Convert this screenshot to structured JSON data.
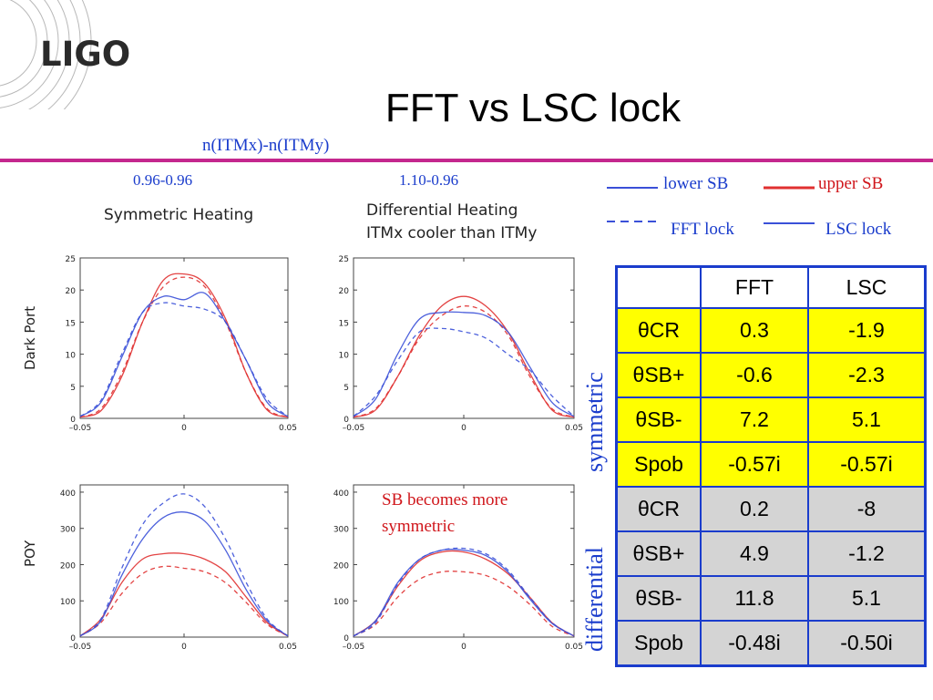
{
  "logo": {
    "text": "LIGO"
  },
  "title": "FFT vs LSC lock",
  "subtitle": "n(ITMx)-n(ITMy)",
  "case_labels": [
    "0.96-0.96",
    "1.10-0.96"
  ],
  "panel_titles": {
    "left": "Symmetric Heating",
    "right_line1": "Differential Heating",
    "right_line2": "ITMx cooler than ITMy"
  },
  "row_labels": [
    "Dark Port",
    "POY"
  ],
  "legend": {
    "lower_sb": "lower SB",
    "upper_sb": "upper SB",
    "fft_lock": "FFT lock",
    "lsc_lock": "LSC lock"
  },
  "annotation": {
    "line1": "SB becomes more",
    "line2": "symmetric"
  },
  "group_labels": {
    "symmetric": "symmetric",
    "differential": "differential"
  },
  "colors": {
    "lower_sb": "#3a50d8",
    "upper_sb": "#e03030",
    "accent": "#1a3ccc",
    "rule": "#c4278e",
    "symmetric_fill": "#ffff00",
    "differential_fill": "#d4d4d4"
  },
  "table": {
    "headers": [
      "",
      "FFT",
      "LSC"
    ],
    "symmetric": [
      [
        "θCR",
        "0.3",
        "-1.9"
      ],
      [
        "θSB+",
        "-0.6",
        "-2.3"
      ],
      [
        "θSB-",
        "7.2",
        "5.1"
      ],
      [
        "Spob",
        "-0.57i",
        "-0.57i"
      ]
    ],
    "differential": [
      [
        "θCR",
        "0.2",
        "-8"
      ],
      [
        "θSB+",
        "4.9",
        "-1.2"
      ],
      [
        "θSB-",
        "11.8",
        "5.1"
      ],
      [
        "Spob",
        "-0.48i",
        "-0.50i"
      ]
    ]
  },
  "chart_data": [
    {
      "type": "line",
      "panel": "dark-port-symmetric",
      "xlim": [
        -0.05,
        0.05
      ],
      "ylim": [
        0,
        25
      ],
      "xticks": [
        "-0.05",
        "0",
        "0.05"
      ],
      "yticks": [
        "0",
        "5",
        "10",
        "15",
        "20",
        "25"
      ],
      "x": [
        -0.05,
        -0.04,
        -0.03,
        -0.02,
        -0.01,
        0,
        0.01,
        0.02,
        0.03,
        0.04,
        0.05
      ],
      "series": [
        {
          "name": "upper SB",
          "lock": "FFT lock",
          "values": [
            0.2,
            1.5,
            7,
            15,
            20.5,
            22,
            20.5,
            15,
            7,
            1.5,
            0.2
          ]
        },
        {
          "name": "upper SB",
          "lock": "LSC lock",
          "values": [
            0.2,
            1.2,
            6.5,
            15,
            21.5,
            22.5,
            21,
            15.5,
            7,
            1.3,
            0.2
          ]
        },
        {
          "name": "lower SB",
          "lock": "FFT lock",
          "values": [
            0.3,
            2.8,
            10,
            16.5,
            18,
            17.5,
            17,
            15,
            9,
            3,
            0.3
          ]
        },
        {
          "name": "lower SB",
          "lock": "LSC lock",
          "values": [
            0.3,
            2.5,
            9.5,
            16.5,
            19,
            18.5,
            19.5,
            15,
            9,
            2.5,
            0.3
          ]
        }
      ]
    },
    {
      "type": "line",
      "panel": "dark-port-differential",
      "xlim": [
        -0.05,
        0.05
      ],
      "ylim": [
        0,
        25
      ],
      "xticks": [
        "-0.05",
        "0",
        "0.05"
      ],
      "yticks": [
        "0",
        "5",
        "10",
        "15",
        "20",
        "25"
      ],
      "x": [
        -0.05,
        -0.04,
        -0.03,
        -0.02,
        -0.01,
        0,
        0.01,
        0.02,
        0.03,
        0.04,
        0.05
      ],
      "series": [
        {
          "name": "upper SB",
          "lock": "FFT lock",
          "values": [
            0.2,
            1.5,
            6.5,
            12.5,
            16,
            17.5,
            16.5,
            13,
            6.5,
            1.5,
            0.2
          ]
        },
        {
          "name": "upper SB",
          "lock": "LSC lock",
          "values": [
            0.2,
            1.3,
            6.5,
            13,
            17.5,
            19,
            17.5,
            13.5,
            7,
            1.3,
            0.2
          ]
        },
        {
          "name": "lower SB",
          "lock": "FFT lock",
          "values": [
            0.3,
            3.5,
            9,
            13.5,
            14,
            13.5,
            12.5,
            10,
            7.5,
            3.5,
            0.3
          ]
        },
        {
          "name": "lower SB",
          "lock": "LSC lock",
          "values": [
            0.3,
            3,
            10,
            15.5,
            16.5,
            16.5,
            16,
            13.5,
            8,
            2.5,
            0.3
          ]
        }
      ]
    },
    {
      "type": "line",
      "panel": "poy-symmetric",
      "xlim": [
        -0.05,
        0.05
      ],
      "ylim": [
        0,
        420
      ],
      "xticks": [
        "-0.05",
        "0",
        "0.05"
      ],
      "yticks": [
        "0",
        "100",
        "200",
        "300",
        "400"
      ],
      "x": [
        -0.05,
        -0.04,
        -0.03,
        -0.02,
        -0.01,
        0,
        0.01,
        0.02,
        0.03,
        0.04,
        0.05
      ],
      "series": [
        {
          "name": "upper SB",
          "lock": "FFT lock",
          "values": [
            3,
            40,
            120,
            175,
            195,
            190,
            180,
            150,
            95,
            35,
            3
          ]
        },
        {
          "name": "upper SB",
          "lock": "LSC lock",
          "values": [
            3,
            50,
            150,
            215,
            230,
            230,
            215,
            180,
            110,
            40,
            3
          ]
        },
        {
          "name": "lower SB",
          "lock": "FFT lock",
          "values": [
            3,
            50,
            190,
            310,
            370,
            395,
            360,
            270,
            150,
            50,
            3
          ]
        },
        {
          "name": "lower SB",
          "lock": "LSC lock",
          "values": [
            3,
            45,
            170,
            270,
            330,
            345,
            320,
            240,
            130,
            45,
            3
          ]
        }
      ]
    },
    {
      "type": "line",
      "panel": "poy-differential",
      "xlim": [
        -0.05,
        0.05
      ],
      "ylim": [
        0,
        420
      ],
      "xticks": [
        "-0.05",
        "0",
        "0.05"
      ],
      "yticks": [
        "0",
        "100",
        "200",
        "300",
        "400"
      ],
      "x": [
        -0.05,
        -0.04,
        -0.03,
        -0.02,
        -0.01,
        0,
        0.01,
        0.02,
        0.03,
        0.04,
        0.05
      ],
      "series": [
        {
          "name": "upper SB",
          "lock": "FFT lock",
          "values": [
            3,
            35,
            110,
            160,
            180,
            180,
            170,
            140,
            90,
            30,
            3
          ]
        },
        {
          "name": "upper SB",
          "lock": "LSC lock",
          "values": [
            3,
            45,
            140,
            210,
            235,
            235,
            215,
            175,
            110,
            40,
            3
          ]
        },
        {
          "name": "lower SB",
          "lock": "FFT lock",
          "values": [
            3,
            40,
            145,
            215,
            240,
            245,
            230,
            185,
            110,
            40,
            3
          ]
        },
        {
          "name": "lower SB",
          "lock": "LSC lock",
          "values": [
            3,
            45,
            150,
            215,
            240,
            240,
            225,
            180,
            105,
            38,
            3
          ]
        }
      ]
    }
  ]
}
